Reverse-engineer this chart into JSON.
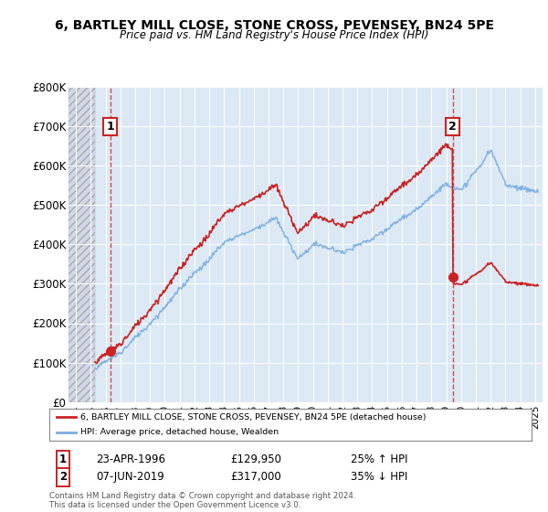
{
  "title": "6, BARTLEY MILL CLOSE, STONE CROSS, PEVENSEY, BN24 5PE",
  "subtitle": "Price paid vs. HM Land Registry's House Price Index (HPI)",
  "legend_line1": "6, BARTLEY MILL CLOSE, STONE CROSS, PEVENSEY, BN24 5PE (detached house)",
  "legend_line2": "HPI: Average price, detached house, Wealden",
  "annotation1_date": "23-APR-1996",
  "annotation1_price": "£129,950",
  "annotation1_hpi": "25% ↑ HPI",
  "annotation2_date": "07-JUN-2019",
  "annotation2_price": "£317,000",
  "annotation2_hpi": "35% ↓ HPI",
  "footnote": "Contains HM Land Registry data © Crown copyright and database right 2024.\nThis data is licensed under the Open Government Licence v3.0.",
  "hpi_color": "#7aade0",
  "price_color": "#cc2222",
  "annotation_box_color": "#cc2222",
  "background_color": "#ffffff",
  "plot_bg_color": "#dce9f5",
  "ylim": [
    0,
    800000
  ],
  "yticks": [
    0,
    100000,
    200000,
    300000,
    400000,
    500000,
    600000,
    700000,
    800000
  ],
  "ytick_labels": [
    "£0",
    "£100K",
    "£200K",
    "£300K",
    "£400K",
    "£500K",
    "£600K",
    "£700K",
    "£800K"
  ],
  "sale1_x": 1996.31,
  "sale1_y": 129950,
  "sale2_x": 2019.43,
  "sale2_y": 317000,
  "xlim_left": 1993.5,
  "xlim_right": 2025.5,
  "hatch_end": 1995.3,
  "data_start": 1995.3
}
